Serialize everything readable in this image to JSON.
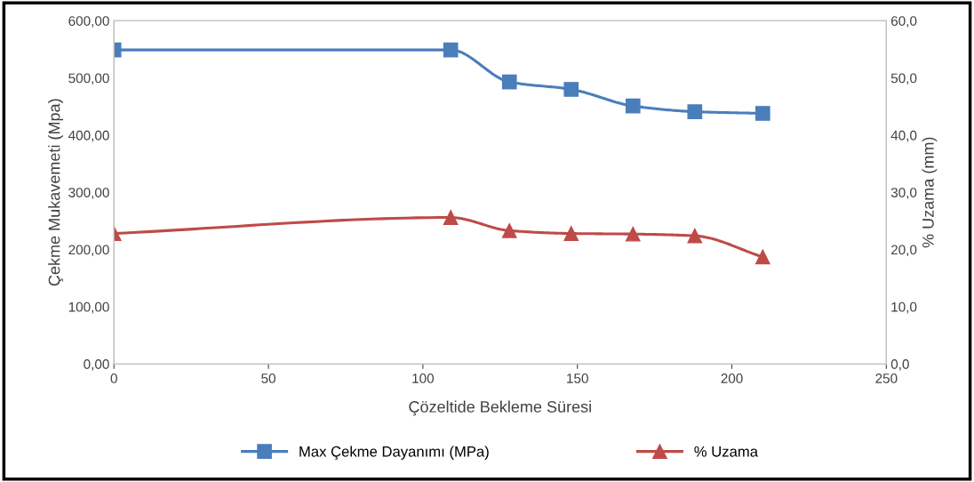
{
  "chart_data": {
    "type": "line",
    "xlabel": "Çözeltide Bekleme Süresi",
    "ylabel": "Çekme Mukavemeti (Mpa)",
    "y2label": "% Uzama (mm)",
    "x": [
      0,
      109,
      128,
      148,
      168,
      188,
      210
    ],
    "series": [
      {
        "name": "Max Çekme Dayanımı (MPa)",
        "color": "#4a7ebb",
        "marker": "square",
        "values": [
          549,
          549,
          493,
          480,
          451,
          441,
          438
        ]
      },
      {
        "name": "% Uzama",
        "color": "#be4b48",
        "marker": "triangle",
        "axis": "y2",
        "values": [
          22.8,
          25.6,
          23.3,
          22.8,
          22.7,
          22.4,
          18.7
        ]
      }
    ],
    "xlim": [
      0,
      250
    ],
    "xticks": [
      0,
      50,
      100,
      150,
      200,
      250
    ],
    "ylim": [
      0,
      600
    ],
    "yticks": [
      {
        "value": 0,
        "label": "0,00"
      },
      {
        "value": 100,
        "label": "100,00"
      },
      {
        "value": 200,
        "label": "200,00"
      },
      {
        "value": 300,
        "label": "300,00"
      },
      {
        "value": 400,
        "label": "400,00"
      },
      {
        "value": 500,
        "label": "500,00"
      },
      {
        "value": 600,
        "label": "600,00"
      }
    ],
    "y2lim": [
      0,
      60
    ],
    "y2ticks": [
      {
        "value": 0,
        "label": "0,0"
      },
      {
        "value": 10,
        "label": "10,0"
      },
      {
        "value": 20,
        "label": "20,0"
      },
      {
        "value": 30,
        "label": "30,0"
      },
      {
        "value": 40,
        "label": "40,0"
      },
      {
        "value": 50,
        "label": "50,0"
      },
      {
        "value": 60,
        "label": "60,0"
      }
    ],
    "grid": false,
    "legend": "bottom",
    "line_style": "solid"
  }
}
